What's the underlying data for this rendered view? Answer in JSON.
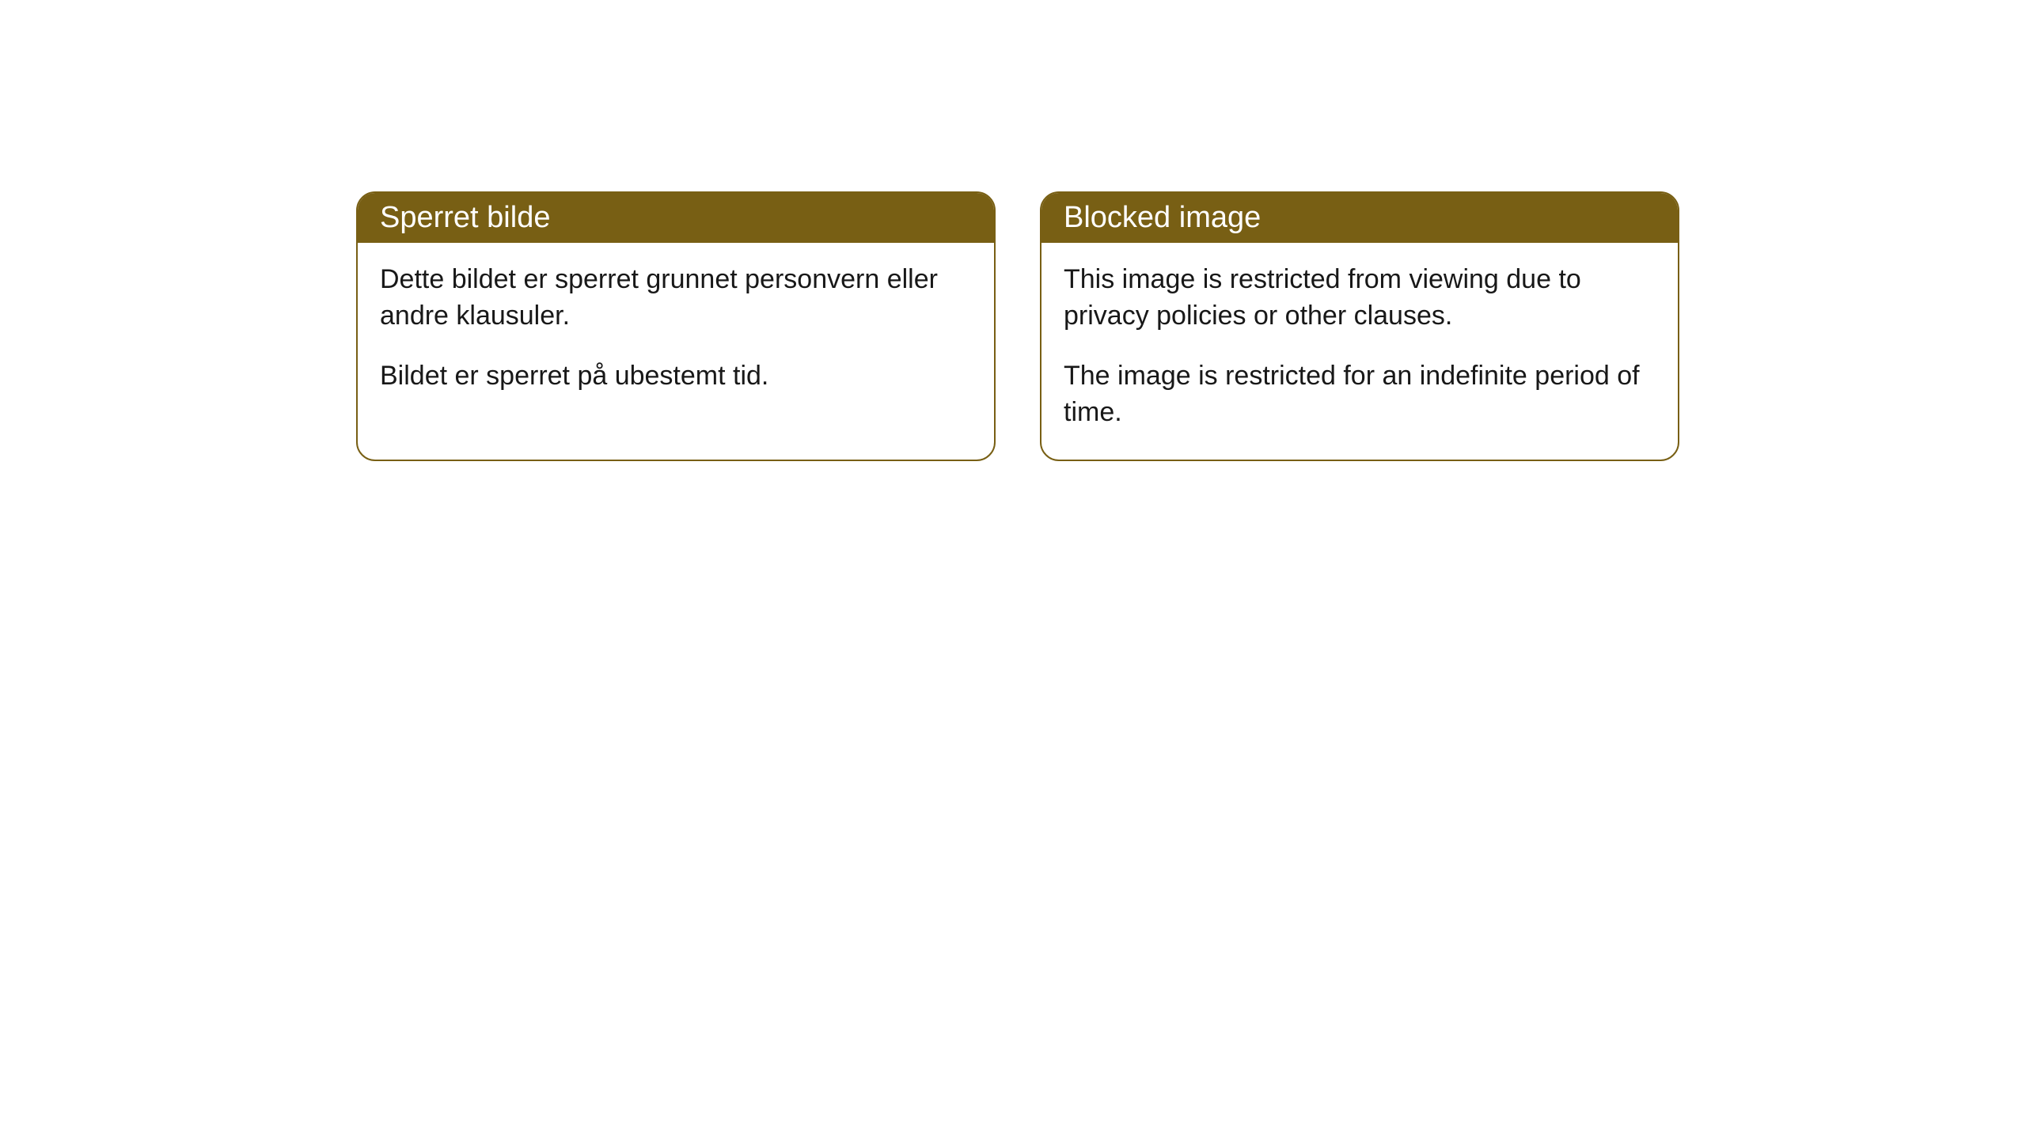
{
  "colors": {
    "header_bg": "#785f14",
    "header_text": "#ffffff",
    "border": "#785f14",
    "body_text": "#181818",
    "page_bg": "#ffffff"
  },
  "cards": [
    {
      "title": "Sperret bilde",
      "paragraphs": [
        "Dette bildet er sperret grunnet personvern eller andre klausuler.",
        "Bildet er sperret på ubestemt tid."
      ]
    },
    {
      "title": "Blocked image",
      "paragraphs": [
        "This image is restricted from viewing due to privacy policies or other clauses.",
        "The image is restricted for an indefinite period of time."
      ]
    }
  ]
}
